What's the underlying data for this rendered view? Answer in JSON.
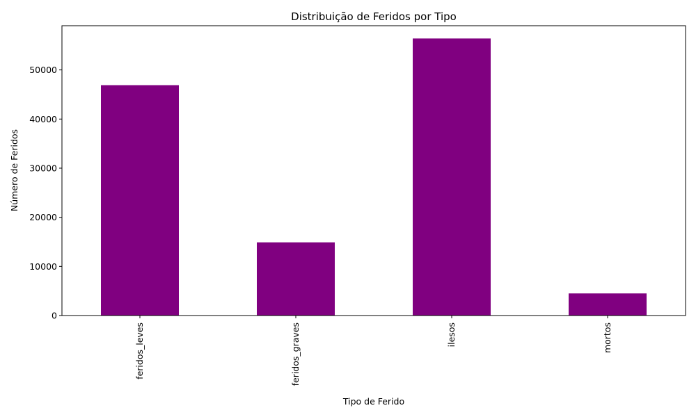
{
  "chart_data": {
    "type": "bar",
    "title": "Distribuição de Feridos por Tipo",
    "xlabel": "Tipo de Ferido",
    "ylabel": "Número de Feridos",
    "categories": [
      "feridos_leves",
      "feridos_graves",
      "ilesos",
      "mortos"
    ],
    "values": [
      46900,
      14900,
      56400,
      4500
    ],
    "ylim": [
      0,
      59000
    ],
    "yticks": [
      0,
      10000,
      20000,
      30000,
      40000,
      50000
    ],
    "bar_color": "#800080",
    "grid": false,
    "legend": "none"
  }
}
